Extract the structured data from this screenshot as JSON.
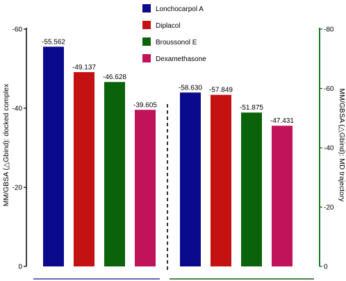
{
  "chart_data": {
    "type": "bar",
    "legend": {
      "placement": "top-center",
      "entries": [
        {
          "name": "Lonchocarpol A",
          "color": "#0a0a8c"
        },
        {
          "name": "Diplacol",
          "color": "#c41212"
        },
        {
          "name": "Broussonol E",
          "color": "#0a620a"
        },
        {
          "name": "Dexamethasone",
          "color": "#c0135a"
        }
      ]
    },
    "left_axis": {
      "title": "MM/GBSA (△Gbind): docked complex",
      "ticks": [
        "0",
        "-20",
        "-40",
        "-60"
      ],
      "tick_values": [
        0,
        -20,
        -40,
        -60
      ],
      "ylim": [
        0,
        -60
      ],
      "color": "#000000",
      "baseline_color": "#2e3d9c"
    },
    "right_axis": {
      "title": "MM/GBSA (△Gbind): MD trajectory",
      "ticks": [
        "0",
        "-20",
        "-40",
        "-60",
        "-80"
      ],
      "tick_values": [
        0,
        -20,
        -40,
        -60,
        -80
      ],
      "ylim": [
        0,
        -80
      ],
      "color": "#0a620a"
    },
    "groups": [
      {
        "axis": "left",
        "values": [
          -55.562,
          -49.137,
          -46.628,
          -39.605
        ],
        "labels": [
          "-55.562",
          "-49.137",
          "-46.628",
          "-39.605"
        ]
      },
      {
        "axis": "right",
        "values": [
          -58.63,
          -57.849,
          -51.875,
          -47.431
        ],
        "labels": [
          "-58.630",
          "-57.849",
          "-51.875",
          "-47.431"
        ]
      }
    ],
    "divider": "dashed",
    "grid": false
  }
}
